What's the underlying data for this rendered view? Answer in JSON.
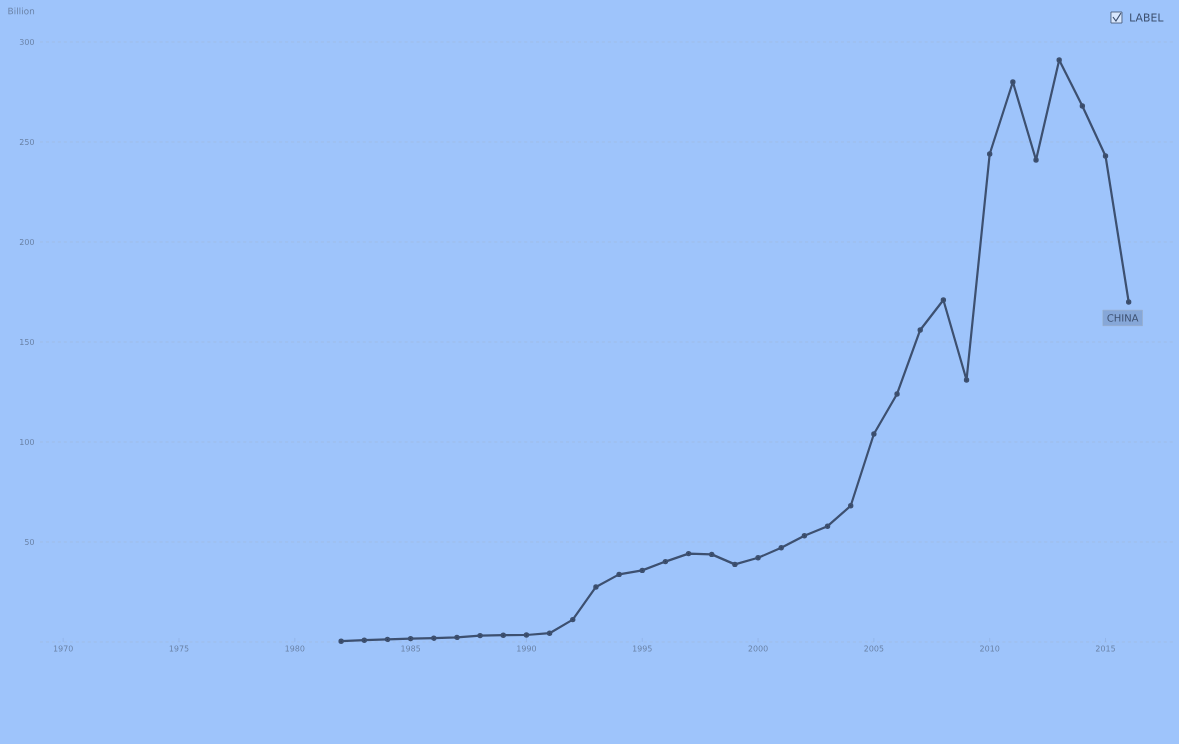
{
  "chart_data": {
    "type": "line",
    "ylabel": "Billion",
    "x": [
      1982,
      1983,
      1984,
      1985,
      1986,
      1987,
      1988,
      1989,
      1990,
      1991,
      1992,
      1993,
      1994,
      1995,
      1996,
      1997,
      1998,
      1999,
      2000,
      2001,
      2002,
      2003,
      2004,
      2005,
      2006,
      2007,
      2008,
      2009,
      2010,
      2011,
      2012,
      2013,
      2014,
      2015,
      2016
    ],
    "series": [
      {
        "name": "CHINA",
        "color": "#3d5070",
        "values": [
          0.4,
          0.9,
          1.3,
          1.7,
          1.9,
          2.3,
          3.2,
          3.4,
          3.5,
          4.4,
          11.2,
          27.5,
          33.8,
          35.8,
          40.2,
          44.2,
          43.8,
          38.8,
          42.1,
          47.1,
          53.1,
          57.9,
          68.1,
          104,
          124,
          156,
          171,
          131,
          244,
          280,
          241,
          291,
          268,
          243,
          170
        ]
      }
    ],
    "xlim": [
      1969,
      2018
    ],
    "ylim": [
      0,
      300
    ],
    "xticks": [
      1970,
      1975,
      1980,
      1985,
      1990,
      1995,
      2000,
      2005,
      2010,
      2015
    ],
    "yticks": [
      {
        "value": 0,
        "label": null
      },
      50,
      100,
      150,
      200,
      250,
      300
    ],
    "grid": "y",
    "marker": "circle",
    "line_style": "solid",
    "annotations": [
      "LABEL"
    ]
  }
}
